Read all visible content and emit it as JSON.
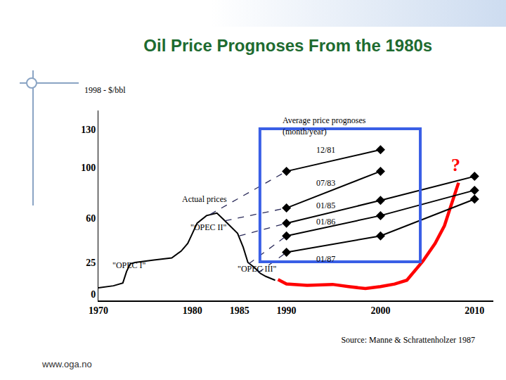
{
  "chart_data": {
    "type": "line",
    "title": "Oil Price Prognoses From the 1980s",
    "y_label": "1998 - $/bbl",
    "source": "Source: Manne & Schrattenholzer 1987",
    "footer": "www.oga.no",
    "xlim": [
      1970,
      2012
    ],
    "xticks": [
      1970,
      1980,
      1985,
      1990,
      2000,
      2010
    ],
    "ylim": [
      -5,
      145
    ],
    "yticks": [
      0,
      25,
      60,
      100,
      130
    ],
    "grid": false,
    "series": [
      {
        "color": "#000000",
        "line_style": "solid",
        "x": [
          1970,
          1971.6,
          1972.6,
          1973.0,
          1973.4,
          1973.9,
          1975.9,
          1977.8,
          1978.8,
          1979.5,
          1980,
          1980.5,
          1981.5,
          1982.6,
          1983.3,
          1984.1,
          1984.8,
          1985.4,
          1985.9,
          1986.6,
          1987.2,
          1987.8,
          1988.8
        ],
        "values": [
          5,
          6.6,
          8.8,
          18,
          24,
          25,
          27,
          28.6,
          34,
          40,
          48,
          56,
          62,
          64,
          59,
          53,
          48,
          37,
          25,
          21,
          16.5,
          14,
          11
        ]
      },
      {
        "color": "#ff0000",
        "line_style": "solid",
        "x": [
          1989.1,
          1990,
          1992.2,
          1994.9,
          1996.6,
          1998.4,
          2000,
          2001.5,
          2002.8,
          2003.6,
          2004.5,
          2005.8,
          2006.8,
          2007.5,
          2008.3
        ],
        "values": [
          11.5,
          8,
          7,
          7.7,
          6,
          4.4,
          6,
          8,
          11,
          18,
          26,
          40,
          54,
          70,
          88
        ]
      },
      {
        "color": "#2b2b5a",
        "line_style": "dashed",
        "x": [
          1981.9,
          1990
        ],
        "values": [
          63,
          97
        ]
      },
      {
        "color": "#2b2b5a",
        "line_style": "dashed",
        "x": [
          1983.5,
          1990
        ],
        "values": [
          58,
          68
        ]
      },
      {
        "color": "#2b2b5a",
        "line_style": "dashed",
        "x": [
          1985,
          1990
        ],
        "values": [
          46,
          56
        ]
      },
      {
        "color": "#2b2b5a",
        "line_style": "dashed",
        "x": [
          1986,
          1990
        ],
        "values": [
          24,
          46
        ]
      },
      {
        "color": "#2b2b5a",
        "line_style": "dashed",
        "x": [
          1987,
          1990
        ],
        "values": [
          17,
          33
        ]
      },
      {
        "color": "#000000",
        "line_style": "solid",
        "marker": "diamond",
        "x": [
          1990,
          2000
        ],
        "values": [
          97,
          114
        ]
      },
      {
        "color": "#000000",
        "line_style": "solid",
        "marker": "diamond",
        "x": [
          1990,
          2000
        ],
        "values": [
          68,
          97
        ]
      },
      {
        "color": "#000000",
        "line_style": "solid",
        "marker": "diamond",
        "x": [
          1990,
          2000,
          2010
        ],
        "values": [
          56,
          74,
          93
        ]
      },
      {
        "color": "#000000",
        "line_style": "solid",
        "marker": "diamond",
        "x": [
          1990,
          2000,
          2010
        ],
        "values": [
          46,
          62,
          82
        ]
      },
      {
        "color": "#000000",
        "line_style": "solid",
        "marker": "diamond",
        "x": [
          1990,
          2000,
          2010
        ],
        "values": [
          33,
          46,
          75
        ]
      }
    ],
    "annotations": [
      {
        "text": [
          "Average price prognoses",
          "(month/year)"
        ],
        "x": 1989.4,
        "y": 142
      },
      {
        "text": "12/81",
        "x": 1994.2,
        "y": 114
      },
      {
        "text": "07/83",
        "x": 1994.2,
        "y": 88
      },
      {
        "text": "01/85",
        "x": 1994.2,
        "y": 70
      },
      {
        "text": "01/86",
        "x": 1994.2,
        "y": 57
      },
      {
        "text": "01/87",
        "x": 1994.2,
        "y": 28
      },
      {
        "text": "Actual prices",
        "x": 1981.3,
        "y": 75
      },
      {
        "text": "\"OPEC I\"",
        "x": 1973.3,
        "y": 23
      },
      {
        "text": "\"OPEC II\"",
        "x": 1981.7,
        "y": 53
      },
      {
        "text": "\"OPEC III\"",
        "x": 1986.9,
        "y": 20
      },
      {
        "text": "?",
        "x": 2008,
        "y": 102,
        "color": "#ff0000"
      }
    ]
  }
}
